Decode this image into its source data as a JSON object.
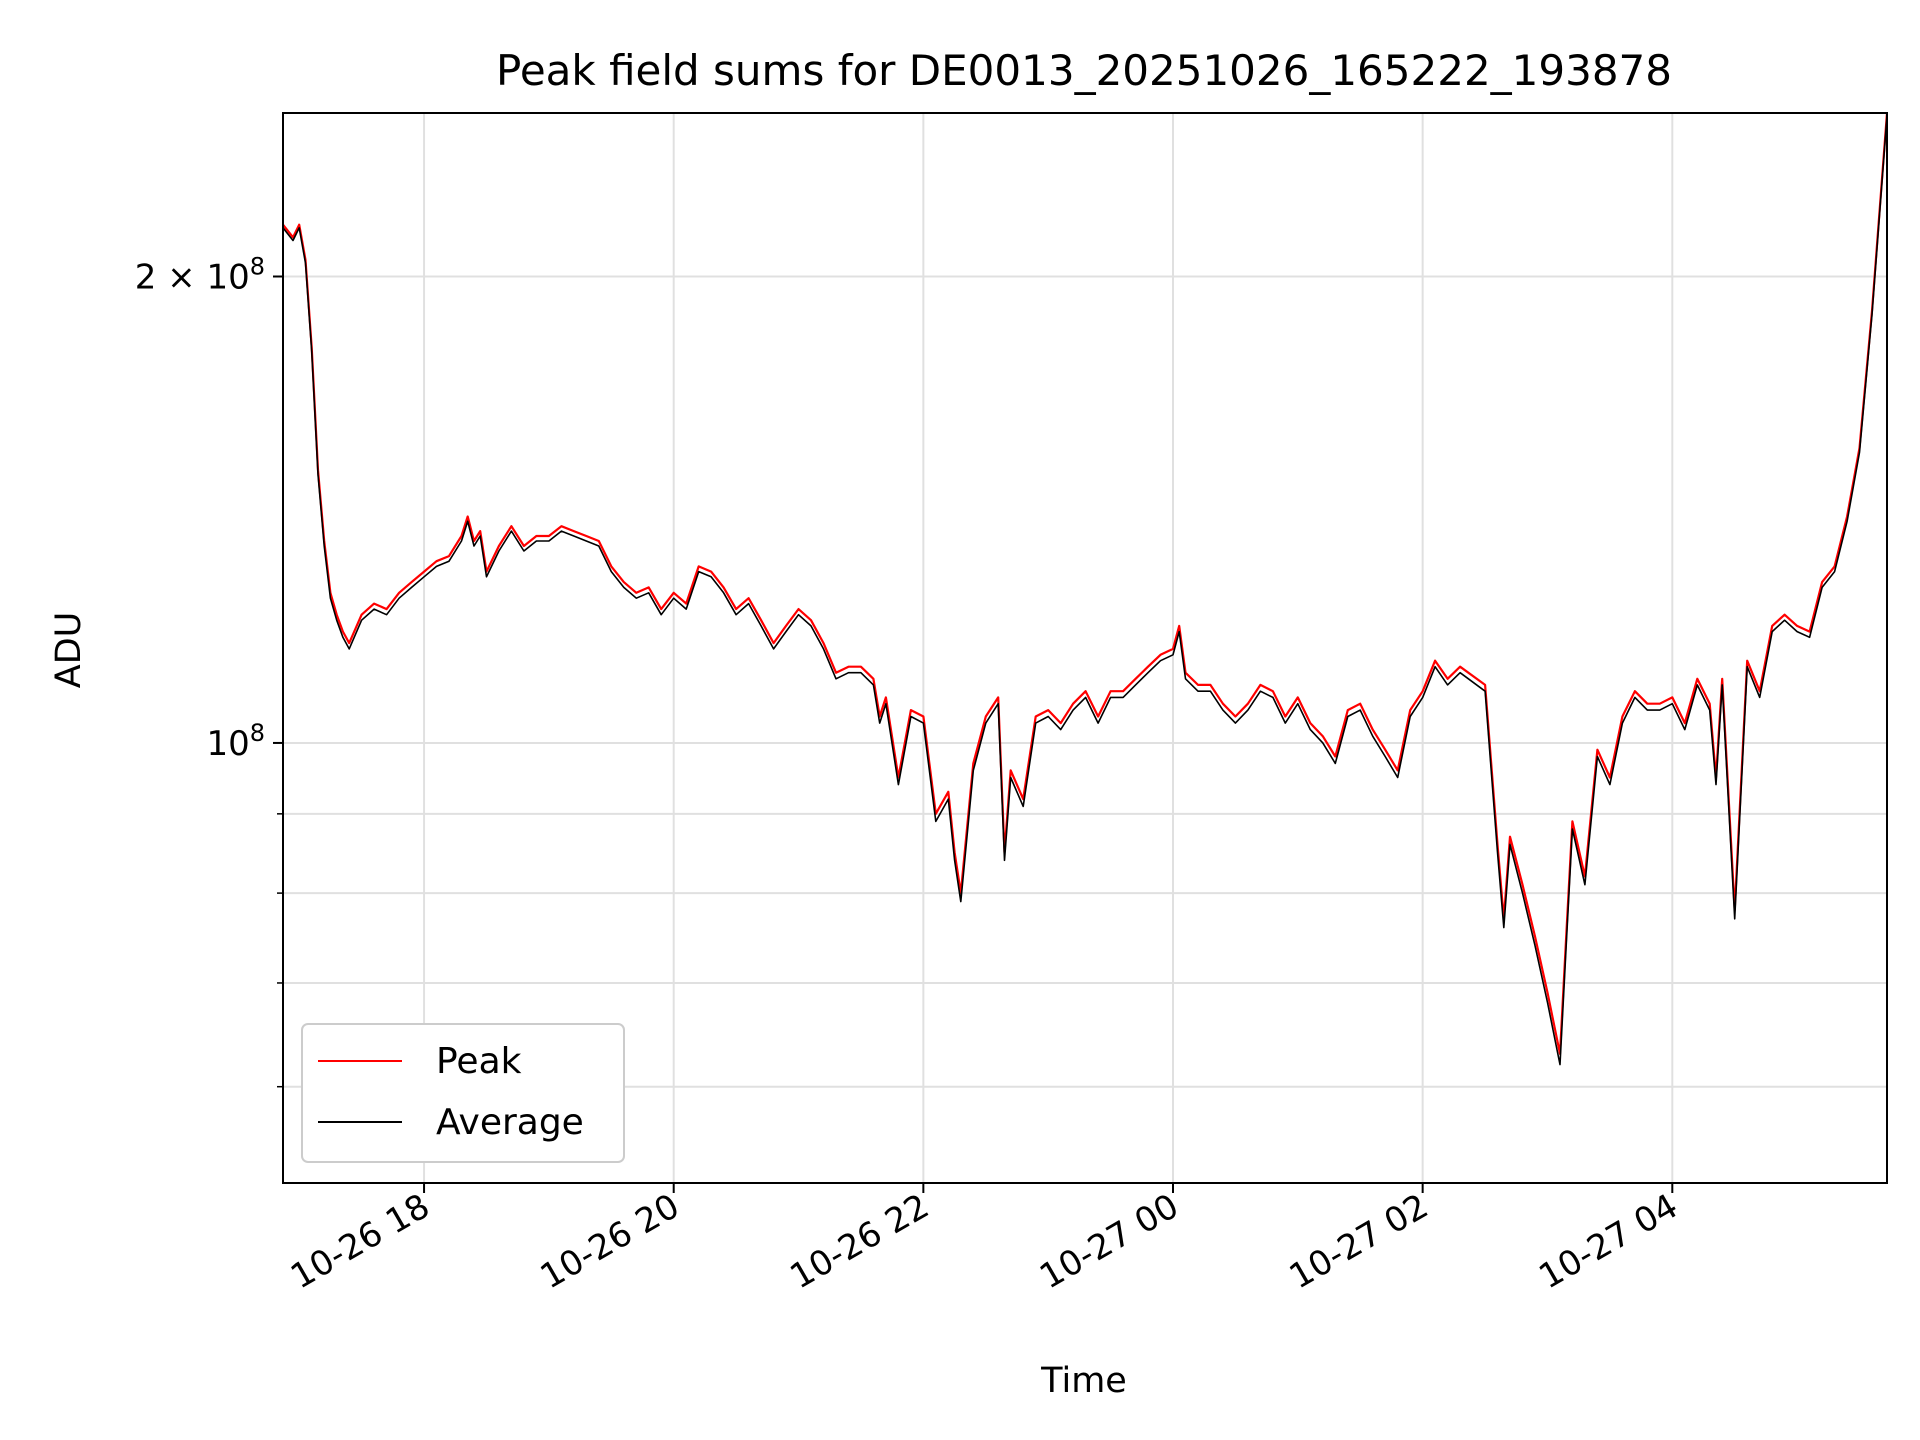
{
  "chart_data": {
    "type": "line",
    "title": "Peak field sums for DE0013_20251026_165222_193878",
    "xlabel": "Time",
    "ylabel": "ADU",
    "yscale": "log",
    "ylim": [
      52000000,
      255000000
    ],
    "xlim_hours": [
      16.87,
      29.72
    ],
    "x_ticks": [
      {
        "h": 18,
        "label": "10-26 18"
      },
      {
        "h": 20,
        "label": "10-26 20"
      },
      {
        "h": 22,
        "label": "10-26 22"
      },
      {
        "h": 24,
        "label": "10-27 00"
      },
      {
        "h": 26,
        "label": "10-27 02"
      },
      {
        "h": 28,
        "label": "10-27 04"
      }
    ],
    "y_major_ticks": [
      {
        "v": 100000000,
        "base": "10",
        "exp": "8",
        "mult": ""
      },
      {
        "v": 200000000,
        "base": "10",
        "exp": "8",
        "mult": "2 × "
      }
    ],
    "y_minor_ticks": [
      60000000,
      70000000,
      80000000,
      90000000
    ],
    "grid": true,
    "legend_position": "lower-left",
    "colors": {
      "peak": "#ff0000",
      "average": "#000000"
    },
    "series": [
      {
        "name": "Peak",
        "x_hours": [
          16.87,
          16.95,
          17.0,
          17.05,
          17.1,
          17.15,
          17.2,
          17.25,
          17.3,
          17.35,
          17.4,
          17.5,
          17.6,
          17.7,
          17.8,
          17.9,
          18.0,
          18.1,
          18.2,
          18.3,
          18.35,
          18.4,
          18.45,
          18.5,
          18.6,
          18.7,
          18.8,
          18.9,
          19.0,
          19.1,
          19.2,
          19.3,
          19.4,
          19.5,
          19.6,
          19.7,
          19.8,
          19.9,
          20.0,
          20.1,
          20.2,
          20.3,
          20.4,
          20.5,
          20.6,
          20.7,
          20.8,
          20.9,
          21.0,
          21.1,
          21.2,
          21.3,
          21.4,
          21.5,
          21.6,
          21.65,
          21.7,
          21.8,
          21.9,
          22.0,
          22.1,
          22.2,
          22.25,
          22.3,
          22.4,
          22.5,
          22.6,
          22.65,
          22.7,
          22.8,
          22.9,
          23.0,
          23.1,
          23.2,
          23.3,
          23.4,
          23.5,
          23.6,
          23.7,
          23.8,
          23.9,
          24.0,
          24.05,
          24.1,
          24.2,
          24.3,
          24.4,
          24.5,
          24.6,
          24.7,
          24.8,
          24.9,
          25.0,
          25.1,
          25.2,
          25.3,
          25.4,
          25.5,
          25.6,
          25.7,
          25.8,
          25.9,
          26.0,
          26.1,
          26.2,
          26.3,
          26.5,
          26.6,
          26.65,
          26.7,
          26.8,
          26.9,
          27.0,
          27.1,
          27.15,
          27.2,
          27.3,
          27.4,
          27.5,
          27.6,
          27.7,
          27.8,
          27.9,
          28.0,
          28.1,
          28.2,
          28.3,
          28.35,
          28.4,
          28.5,
          28.6,
          28.7,
          28.8,
          28.9,
          29.0,
          29.1,
          29.2,
          29.3,
          29.4,
          29.5,
          29.6,
          29.72
        ],
        "values": [
          216000000,
          212000000,
          216000000,
          205000000,
          180000000,
          150000000,
          135000000,
          125000000,
          121000000,
          118000000,
          116000000,
          121000000,
          123000000,
          122000000,
          125000000,
          127000000,
          129000000,
          131000000,
          132000000,
          136000000,
          140000000,
          135000000,
          137000000,
          129000000,
          134000000,
          138000000,
          134000000,
          136000000,
          136000000,
          138000000,
          137000000,
          136000000,
          135000000,
          130000000,
          127000000,
          125000000,
          126000000,
          122000000,
          125000000,
          123000000,
          130000000,
          129000000,
          126000000,
          122000000,
          124000000,
          120000000,
          116000000,
          119000000,
          122000000,
          120000000,
          116000000,
          111000000,
          112000000,
          112000000,
          110000000,
          104000000,
          107000000,
          95000000,
          105000000,
          104000000,
          90000000,
          93000000,
          85000000,
          80000000,
          97000000,
          104000000,
          107000000,
          85000000,
          96000000,
          92000000,
          104000000,
          105000000,
          103000000,
          106000000,
          108000000,
          104000000,
          108000000,
          108000000,
          110000000,
          112000000,
          114000000,
          115000000,
          119000000,
          111000000,
          109000000,
          109000000,
          106000000,
          104000000,
          106000000,
          109000000,
          108000000,
          104000000,
          107000000,
          103000000,
          101000000,
          98000000,
          105000000,
          106000000,
          102000000,
          99000000,
          96000000,
          105000000,
          108000000,
          113000000,
          110000000,
          112000000,
          109000000,
          86000000,
          77000000,
          87000000,
          81000000,
          75000000,
          69000000,
          63000000,
          75000000,
          89000000,
          82000000,
          99000000,
          95000000,
          104000000,
          108000000,
          106000000,
          106000000,
          107000000,
          103000000,
          110000000,
          106000000,
          95000000,
          110000000,
          78000000,
          113000000,
          108000000,
          119000000,
          121000000,
          119000000,
          118000000,
          127000000,
          130000000,
          140000000,
          155000000,
          190000000,
          255000000
        ]
      },
      {
        "name": "Average",
        "x_hours": [
          16.87,
          16.95,
          17.0,
          17.05,
          17.1,
          17.15,
          17.2,
          17.25,
          17.3,
          17.35,
          17.4,
          17.5,
          17.6,
          17.7,
          17.8,
          17.9,
          18.0,
          18.1,
          18.2,
          18.3,
          18.35,
          18.4,
          18.45,
          18.5,
          18.6,
          18.7,
          18.8,
          18.9,
          19.0,
          19.1,
          19.2,
          19.3,
          19.4,
          19.5,
          19.6,
          19.7,
          19.8,
          19.9,
          20.0,
          20.1,
          20.2,
          20.3,
          20.4,
          20.5,
          20.6,
          20.7,
          20.8,
          20.9,
          21.0,
          21.1,
          21.2,
          21.3,
          21.4,
          21.5,
          21.6,
          21.65,
          21.7,
          21.8,
          21.9,
          22.0,
          22.1,
          22.2,
          22.25,
          22.3,
          22.4,
          22.5,
          22.6,
          22.65,
          22.7,
          22.8,
          22.9,
          23.0,
          23.1,
          23.2,
          23.3,
          23.4,
          23.5,
          23.6,
          23.7,
          23.8,
          23.9,
          24.0,
          24.05,
          24.1,
          24.2,
          24.3,
          24.4,
          24.5,
          24.6,
          24.7,
          24.8,
          24.9,
          25.0,
          25.1,
          25.2,
          25.3,
          25.4,
          25.5,
          25.6,
          25.7,
          25.8,
          25.9,
          26.0,
          26.1,
          26.2,
          26.3,
          26.5,
          26.6,
          26.65,
          26.7,
          26.8,
          26.9,
          27.0,
          27.1,
          27.15,
          27.2,
          27.3,
          27.4,
          27.5,
          27.6,
          27.7,
          27.8,
          27.9,
          28.0,
          28.1,
          28.2,
          28.3,
          28.35,
          28.4,
          28.5,
          28.6,
          28.7,
          28.8,
          28.9,
          29.0,
          29.1,
          29.2,
          29.3,
          29.4,
          29.5,
          29.6,
          29.72
        ],
        "values": [
          215000000,
          211000000,
          215000000,
          204000000,
          179000000,
          149000000,
          134000000,
          124000000,
          120000000,
          117000000,
          115000000,
          120000000,
          122000000,
          121000000,
          124000000,
          126000000,
          128000000,
          130000000,
          131000000,
          135000000,
          139000000,
          134000000,
          136000000,
          128000000,
          133000000,
          137000000,
          133000000,
          135000000,
          135000000,
          137000000,
          136000000,
          135000000,
          134000000,
          129000000,
          126000000,
          124000000,
          125000000,
          121000000,
          124000000,
          122000000,
          129000000,
          128000000,
          125000000,
          121000000,
          123000000,
          119000000,
          115000000,
          118000000,
          121000000,
          119000000,
          115000000,
          110000000,
          111000000,
          111000000,
          109000000,
          103000000,
          106000000,
          94000000,
          104000000,
          103000000,
          89000000,
          92000000,
          84000000,
          79000000,
          96000000,
          103000000,
          106000000,
          84000000,
          95000000,
          91000000,
          103000000,
          104000000,
          102000000,
          105000000,
          107000000,
          103000000,
          107000000,
          107000000,
          109000000,
          111000000,
          113000000,
          114000000,
          118000000,
          110000000,
          108000000,
          108000000,
          105000000,
          103000000,
          105000000,
          108000000,
          107000000,
          103000000,
          106000000,
          102000000,
          100000000,
          97000000,
          104000000,
          105000000,
          101000000,
          98000000,
          95000000,
          104000000,
          107000000,
          112000000,
          109000000,
          111000000,
          108000000,
          85000000,
          76000000,
          86000000,
          80000000,
          74000000,
          68000000,
          62000000,
          74000000,
          88000000,
          81000000,
          98000000,
          94000000,
          103000000,
          107000000,
          105000000,
          105000000,
          106000000,
          102000000,
          109000000,
          105000000,
          94000000,
          109000000,
          77000000,
          112000000,
          107000000,
          118000000,
          120000000,
          118000000,
          117000000,
          126000000,
          129000000,
          139000000,
          154000000,
          189000000,
          254000000
        ]
      }
    ]
  }
}
